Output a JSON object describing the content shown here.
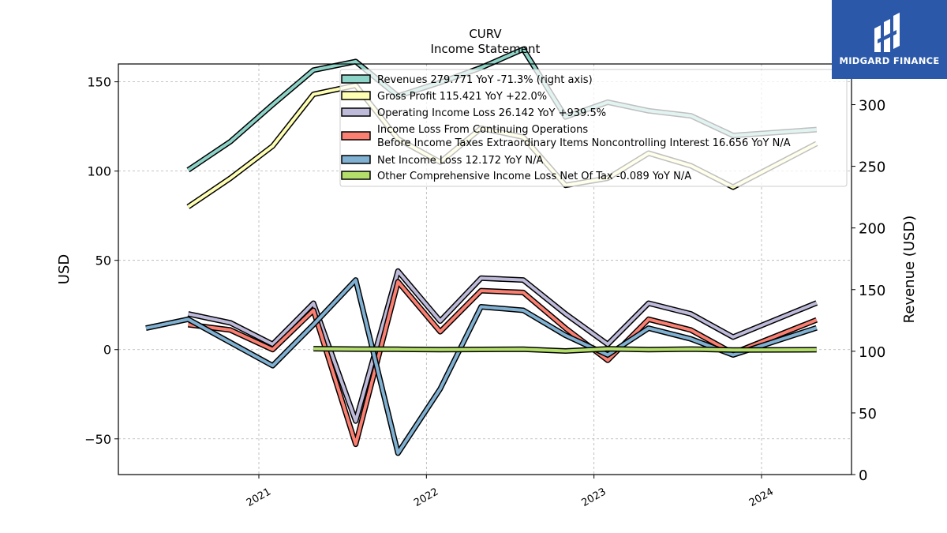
{
  "branding": {
    "logo_text": "MIDGARD FINANCE"
  },
  "chart_data": {
    "type": "line",
    "title": "CURV",
    "subtitle": "Income Statement",
    "ylabel": "USD",
    "ylabel_right": "Revenue (USD)",
    "ylim": [
      -70,
      160
    ],
    "ylim_right": [
      0,
      333
    ],
    "yticks": [
      -50,
      0,
      50,
      100,
      150
    ],
    "yticks_right": [
      0,
      50,
      100,
      150,
      200,
      250,
      300
    ],
    "xticks": [
      "2021",
      "2022",
      "2023",
      "2024"
    ],
    "xtick_dates": [
      "2021-01-01",
      "2022-01-01",
      "2023-01-01",
      "2024-01-01"
    ],
    "xlim": [
      "2020-03-01",
      "2024-07-15"
    ],
    "grid": true,
    "legend_position": "upper-right",
    "series": [
      {
        "name": "Revenues",
        "legend_label": "Revenues  279.771 YoY -71.3% (right axis)",
        "color": "#8dd3c7",
        "axis": "right",
        "x": [
          "2020-07-31",
          "2020-10-31",
          "2021-01-31",
          "2021-04-30",
          "2021-07-31",
          "2021-10-31",
          "2022-01-31",
          "2022-04-30",
          "2022-07-31",
          "2022-10-31",
          "2023-01-31",
          "2023-04-30",
          "2023-07-31",
          "2023-10-31",
          "2024-04-30"
        ],
        "y": [
          247,
          270,
          300,
          328,
          335,
          307,
          318,
          330,
          345,
          290,
          302,
          295,
          291,
          275,
          279.771
        ]
      },
      {
        "name": "Gross Profit",
        "legend_label": "Gross Profit  115.421 YoY +22.0%",
        "color": "#ffffb3",
        "axis": "left",
        "x": [
          "2020-07-31",
          "2020-10-31",
          "2021-01-31",
          "2021-04-30",
          "2021-07-31",
          "2021-10-31",
          "2022-01-31",
          "2022-04-30",
          "2022-07-31",
          "2022-10-31",
          "2023-01-31",
          "2023-04-30",
          "2023-07-31",
          "2023-10-31",
          "2024-04-30"
        ],
        "y": [
          80,
          96,
          114,
          143,
          148,
          118,
          105,
          124,
          119,
          92,
          96,
          110,
          103,
          91,
          115.421
        ]
      },
      {
        "name": "Operating Income Loss",
        "legend_label": "Operating Income Loss  26.142 YoY +939.5%",
        "color": "#bebada",
        "axis": "left",
        "x": [
          "2020-07-31",
          "2020-10-31",
          "2021-01-31",
          "2021-04-30",
          "2021-07-31",
          "2021-10-31",
          "2022-01-31",
          "2022-04-30",
          "2022-07-31",
          "2022-10-31",
          "2023-01-31",
          "2023-04-30",
          "2023-07-31",
          "2023-10-31",
          "2024-04-30"
        ],
        "y": [
          20,
          15,
          3,
          26,
          -40,
          44,
          16,
          40,
          39,
          20,
          3,
          26,
          20,
          7,
          26.142
        ]
      },
      {
        "name": "Income Loss From Continuing Operations Before Income Taxes Extraordinary Items Noncontrolling Interest",
        "legend_label_line1": "Income Loss From Continuing Operations",
        "legend_label_line2": "Before Income Taxes Extraordinary Items Noncontrolling Interest  16.656 YoY N/A",
        "color": "#fb8072",
        "axis": "left",
        "x": [
          "2020-07-31",
          "2020-10-31",
          "2021-01-31",
          "2021-04-30",
          "2021-07-31",
          "2021-10-31",
          "2022-01-31",
          "2022-04-30",
          "2022-07-31",
          "2022-10-31",
          "2023-01-31",
          "2023-04-30",
          "2023-07-31",
          "2023-10-31",
          "2024-04-30"
        ],
        "y": [
          14,
          11,
          0,
          22,
          -53,
          38,
          10,
          33,
          32,
          12,
          -6,
          17,
          11,
          -2,
          16.656
        ]
      },
      {
        "name": "Net Income Loss",
        "legend_label": "Net Income Loss  12.172 YoY N/A",
        "color": "#80b1d3",
        "axis": "left",
        "x": [
          "2020-04-30",
          "2020-07-31",
          "2020-10-31",
          "2021-01-31",
          "2021-04-30",
          "2021-07-31",
          "2021-10-31",
          "2022-01-31",
          "2022-04-30",
          "2022-07-31",
          "2022-10-31",
          "2023-01-31",
          "2023-04-30",
          "2023-07-31",
          "2023-10-31",
          "2024-04-30"
        ],
        "y": [
          12,
          17,
          4,
          -9,
          14,
          39,
          -58,
          -22,
          24,
          22,
          8,
          -3,
          12,
          6,
          -3,
          12.172
        ]
      },
      {
        "name": "Other Comprehensive Income Loss Net Of Tax",
        "legend_label": "Other Comprehensive Income Loss Net Of Tax  -0.089 YoY N/A",
        "color": "#b3de69",
        "axis": "left",
        "x": [
          "2021-04-30",
          "2021-07-31",
          "2021-10-31",
          "2022-01-31",
          "2022-04-30",
          "2022-07-31",
          "2022-10-31",
          "2023-01-31",
          "2023-04-30",
          "2023-07-31",
          "2023-10-31",
          "2024-04-30"
        ],
        "y": [
          0.5,
          0.3,
          0.2,
          0,
          0.1,
          0.2,
          -0.8,
          0.4,
          0,
          0.3,
          -0.2,
          -0.089
        ]
      }
    ]
  }
}
